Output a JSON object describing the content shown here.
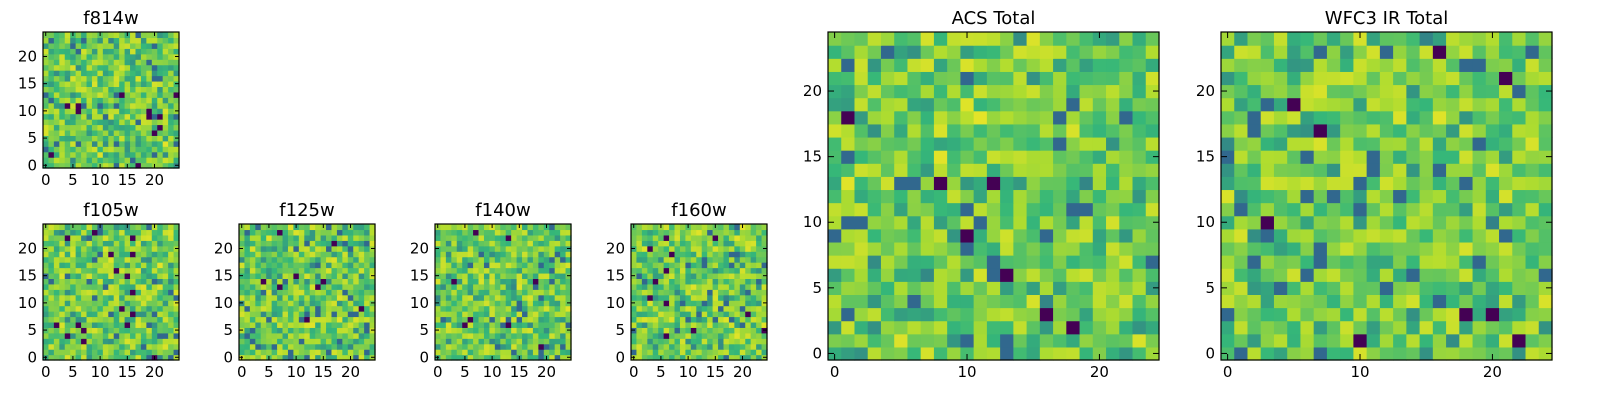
{
  "figure": {
    "background": "#ffffff",
    "colormap": [
      "#440154",
      "#31688e",
      "#35b779",
      "#addc30",
      "#fde725"
    ]
  },
  "chart_data": [
    {
      "id": "f814w",
      "type": "heatmap",
      "title": "f814w",
      "xticks": [
        "0",
        "5",
        "10",
        "15",
        "20"
      ],
      "yticks": [
        "0",
        "5",
        "10",
        "15",
        "20"
      ],
      "grid_size": 25,
      "xlim": [
        0,
        25
      ],
      "ylim": [
        0,
        25
      ],
      "value_range": [
        0,
        1
      ],
      "seed": 814
    },
    {
      "id": "f105w",
      "type": "heatmap",
      "title": "f105w",
      "xticks": [
        "0",
        "5",
        "10",
        "15",
        "20"
      ],
      "yticks": [
        "0",
        "5",
        "10",
        "15",
        "20"
      ],
      "grid_size": 25,
      "xlim": [
        0,
        25
      ],
      "ylim": [
        0,
        25
      ],
      "value_range": [
        0,
        1
      ],
      "seed": 105
    },
    {
      "id": "f125w",
      "type": "heatmap",
      "title": "f125w",
      "xticks": [
        "0",
        "5",
        "10",
        "15",
        "20"
      ],
      "yticks": [
        "0",
        "5",
        "10",
        "15",
        "20"
      ],
      "grid_size": 25,
      "xlim": [
        0,
        25
      ],
      "ylim": [
        0,
        25
      ],
      "value_range": [
        0,
        1
      ],
      "seed": 125
    },
    {
      "id": "f140w",
      "type": "heatmap",
      "title": "f140w",
      "xticks": [
        "0",
        "5",
        "10",
        "15",
        "20"
      ],
      "yticks": [
        "0",
        "5",
        "10",
        "15",
        "20"
      ],
      "grid_size": 25,
      "xlim": [
        0,
        25
      ],
      "ylim": [
        0,
        25
      ],
      "value_range": [
        0,
        1
      ],
      "seed": 140
    },
    {
      "id": "f160w",
      "type": "heatmap",
      "title": "f160w",
      "xticks": [
        "0",
        "5",
        "10",
        "15",
        "20"
      ],
      "yticks": [
        "0",
        "5",
        "10",
        "15",
        "20"
      ],
      "grid_size": 25,
      "xlim": [
        0,
        25
      ],
      "ylim": [
        0,
        25
      ],
      "value_range": [
        0,
        1
      ],
      "seed": 160
    },
    {
      "id": "acs-total",
      "type": "heatmap",
      "title": "ACS Total",
      "xticks": [
        "0",
        "10",
        "20"
      ],
      "yticks": [
        "0",
        "5",
        "10",
        "15",
        "20"
      ],
      "grid_size": 25,
      "xlim": [
        0,
        25
      ],
      "ylim": [
        0,
        25
      ],
      "value_range": [
        0,
        1
      ],
      "seed": 2001
    },
    {
      "id": "wfc3-ir-total",
      "type": "heatmap",
      "title": "WFC3 IR Total",
      "xticks": [
        "0",
        "10",
        "20"
      ],
      "yticks": [
        "0",
        "5",
        "10",
        "15",
        "20"
      ],
      "grid_size": 25,
      "xlim": [
        0,
        25
      ],
      "ylim": [
        0,
        25
      ],
      "value_range": [
        0,
        1
      ],
      "seed": 3003
    }
  ]
}
